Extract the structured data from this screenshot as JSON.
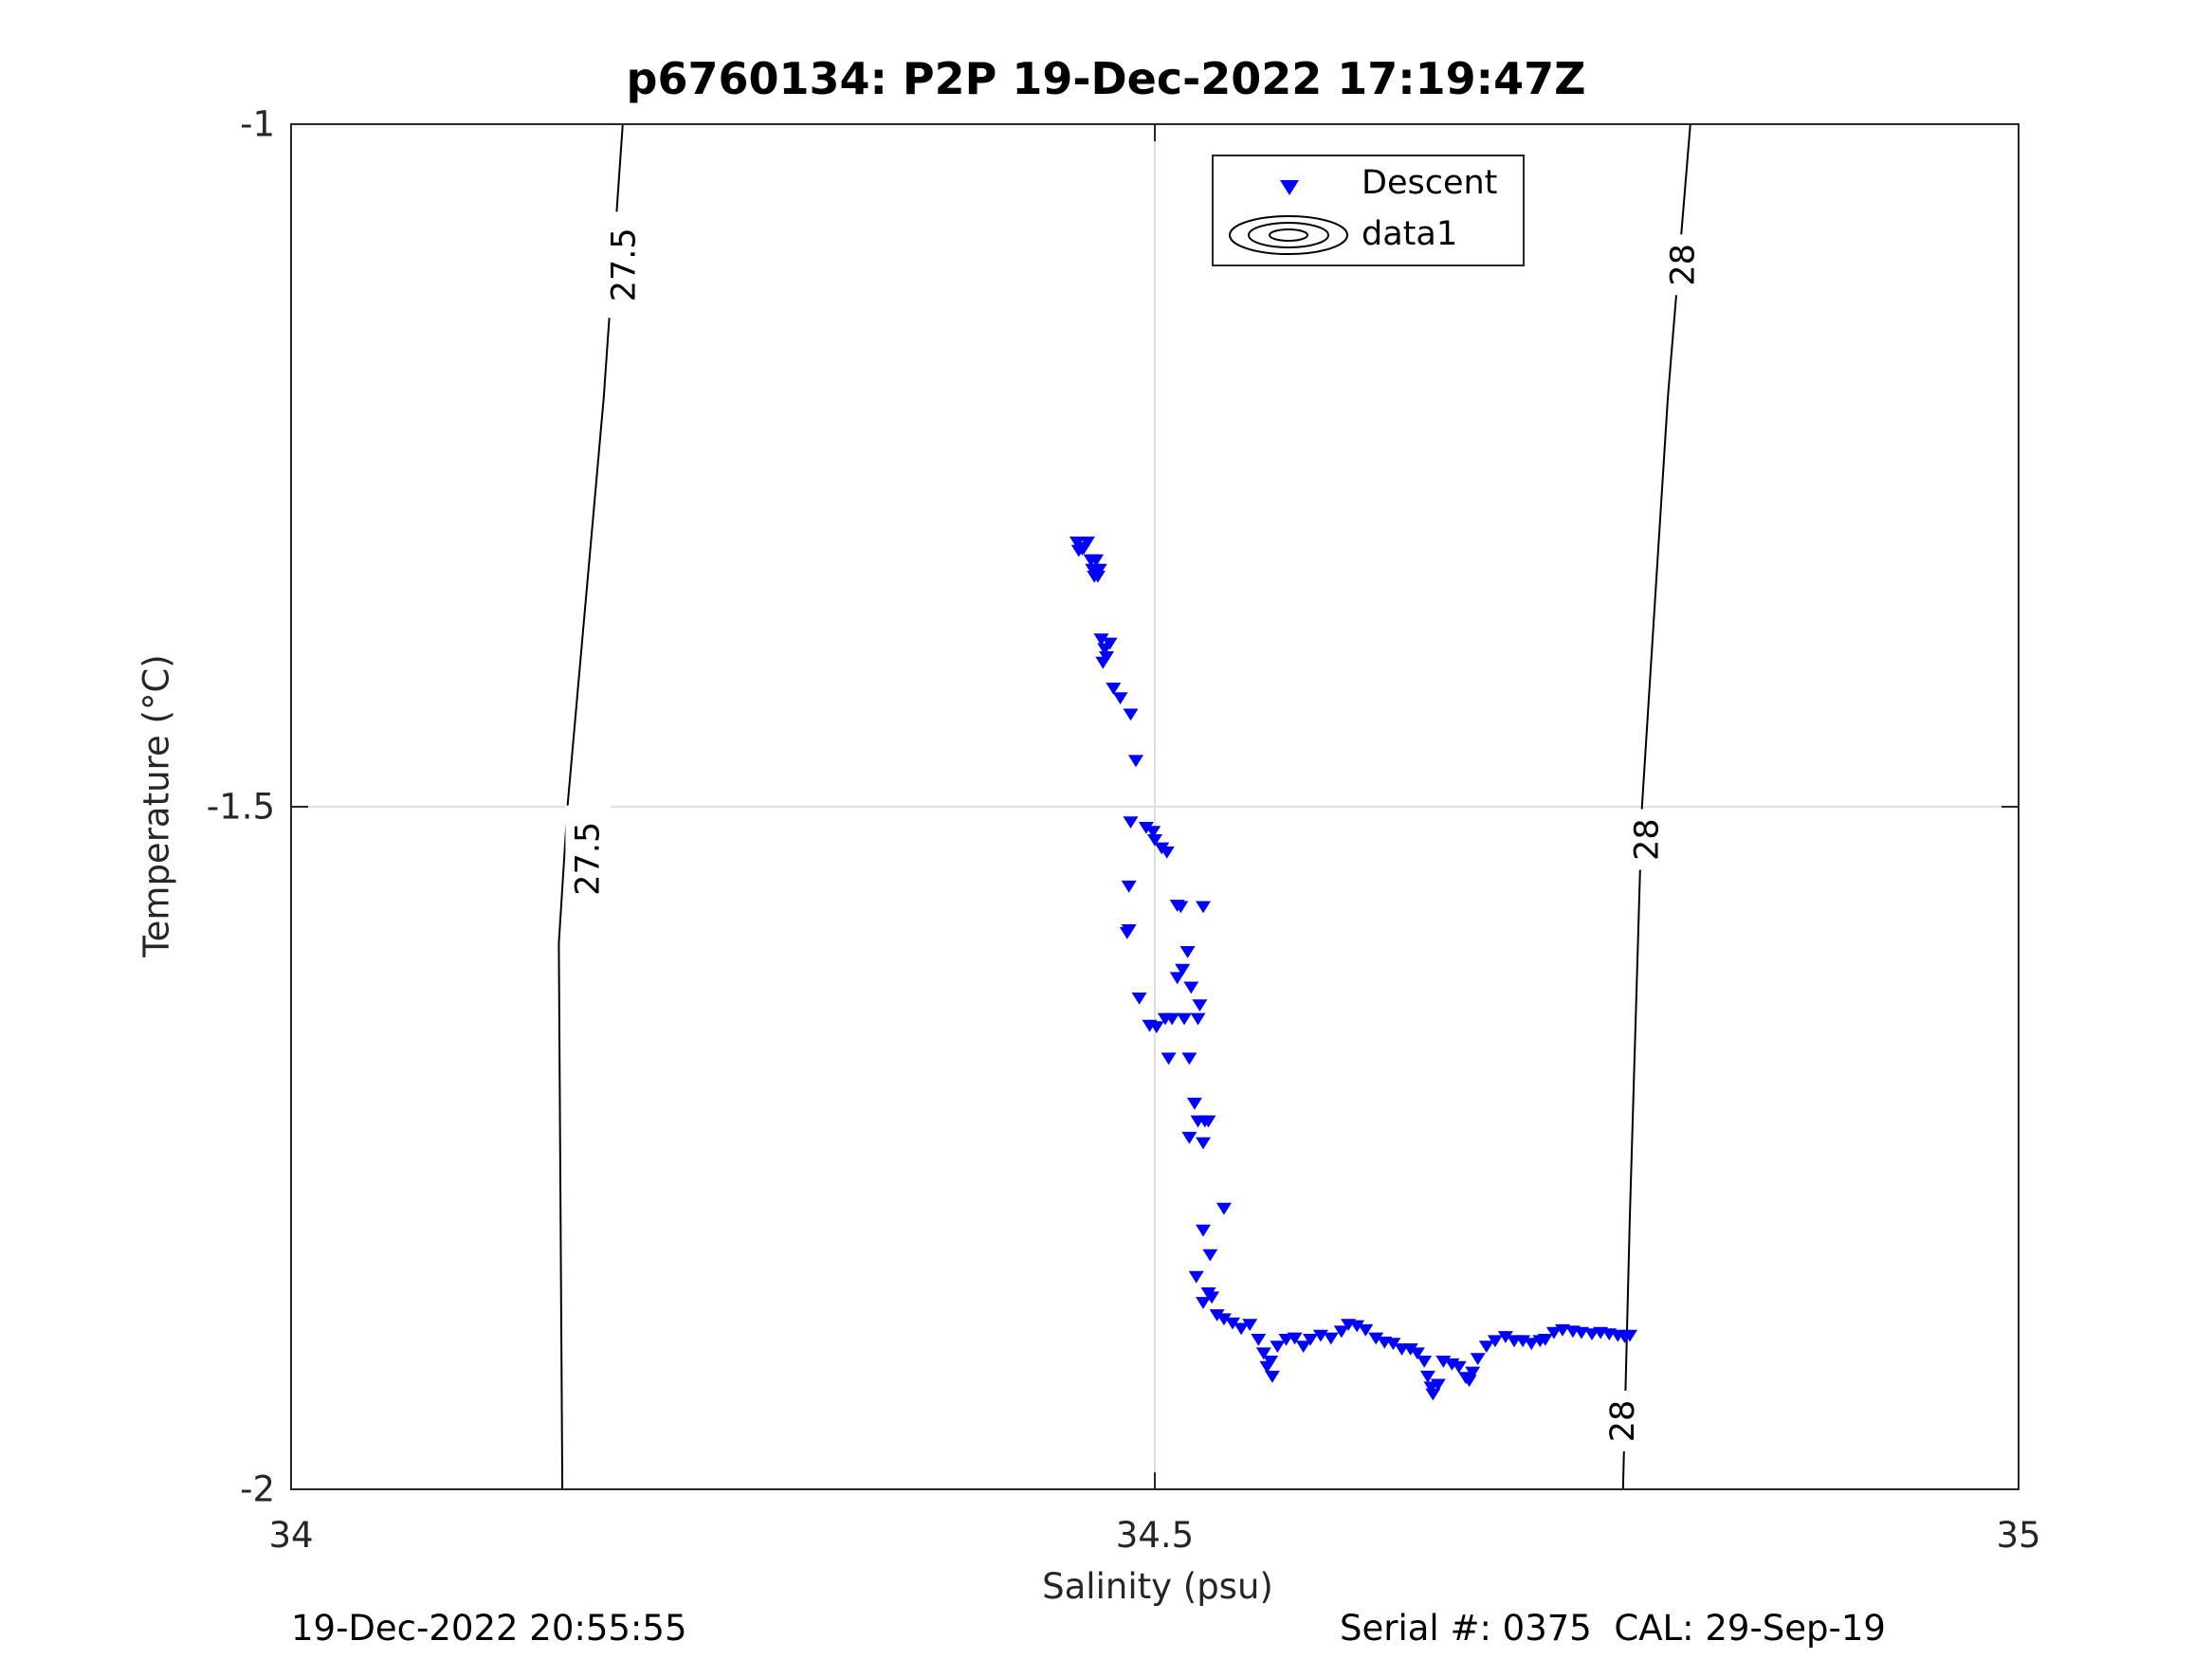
{
  "chart_data": {
    "type": "scatter",
    "title": "p6760134: P2P 19-Dec-2022 17:19:47Z",
    "xlabel": "Salinity (psu)",
    "ylabel": "Temperature (°C)",
    "xlim": [
      34,
      35
    ],
    "ylim": [
      -2,
      -1
    ],
    "xticks": [
      "34",
      "34.5",
      "35"
    ],
    "yticks": [
      "-1",
      "-1.5",
      "-2"
    ],
    "grid": true,
    "legend_position": "top",
    "legend": [
      "Descent",
      "data1"
    ],
    "marker_color": "#0000ff",
    "contour_color": "#000000",
    "density_contours": [
      {
        "label": "27.5",
        "points": [
          [
            34.192,
            -1.0
          ],
          [
            34.181,
            -1.2
          ],
          [
            34.16,
            -1.5
          ],
          [
            34.155,
            -1.6
          ],
          [
            34.157,
            -2.0
          ]
        ]
      },
      {
        "label": "28",
        "points": [
          [
            34.81,
            -1.0
          ],
          [
            34.797,
            -1.2
          ],
          [
            34.782,
            -1.5
          ],
          [
            34.775,
            -1.8
          ],
          [
            34.771,
            -2.0
          ]
        ]
      }
    ],
    "contour_labels": [
      {
        "text": "27.5",
        "x": 34.193,
        "y": -1.103
      },
      {
        "text": "27.5",
        "x": 34.172,
        "y": -1.538
      },
      {
        "text": "28",
        "x": 34.806,
        "y": -1.103
      },
      {
        "text": "28",
        "x": 34.785,
        "y": -1.524
      },
      {
        "text": "28",
        "x": 34.771,
        "y": -1.95
      }
    ],
    "series": [
      {
        "name": "Descent",
        "marker": "triangle-down",
        "points": [
          [
            34.455,
            -1.306
          ],
          [
            34.458,
            -1.311
          ],
          [
            34.461,
            -1.306
          ],
          [
            34.456,
            -1.312
          ],
          [
            34.459,
            -1.31
          ],
          [
            34.463,
            -1.319
          ],
          [
            34.466,
            -1.319
          ],
          [
            34.464,
            -1.326
          ],
          [
            34.468,
            -1.326
          ],
          [
            34.467,
            -1.331
          ],
          [
            34.465,
            -1.331
          ],
          [
            34.469,
            -1.377
          ],
          [
            34.471,
            -1.384
          ],
          [
            34.472,
            -1.39
          ],
          [
            34.474,
            -1.38
          ],
          [
            34.47,
            -1.394
          ],
          [
            34.476,
            -1.413
          ],
          [
            34.48,
            -1.42
          ],
          [
            34.486,
            -1.432
          ],
          [
            34.489,
            -1.466
          ],
          [
            34.486,
            -1.511
          ],
          [
            34.495,
            -1.515
          ],
          [
            34.499,
            -1.518
          ],
          [
            34.504,
            -1.53
          ],
          [
            34.507,
            -1.533
          ],
          [
            34.5,
            -1.524
          ],
          [
            34.485,
            -1.558
          ],
          [
            34.485,
            -1.59
          ],
          [
            34.484,
            -1.592
          ],
          [
            34.513,
            -1.572
          ],
          [
            34.515,
            -1.573
          ],
          [
            34.528,
            -1.573
          ],
          [
            34.519,
            -1.606
          ],
          [
            34.516,
            -1.619
          ],
          [
            34.513,
            -1.625
          ],
          [
            34.491,
            -1.64
          ],
          [
            34.497,
            -1.66
          ],
          [
            34.501,
            -1.661
          ],
          [
            34.506,
            -1.655
          ],
          [
            34.51,
            -1.655
          ],
          [
            34.517,
            -1.655
          ],
          [
            34.521,
            -1.632
          ],
          [
            34.526,
            -1.645
          ],
          [
            34.525,
            -1.655
          ],
          [
            34.508,
            -1.684
          ],
          [
            34.52,
            -1.684
          ],
          [
            34.523,
            -1.717
          ],
          [
            34.529,
            -1.73
          ],
          [
            34.52,
            -1.742
          ],
          [
            34.525,
            -1.73
          ],
          [
            34.531,
            -1.73
          ],
          [
            34.528,
            -1.746
          ],
          [
            34.54,
            -1.794
          ],
          [
            34.528,
            -1.81
          ],
          [
            34.532,
            -1.828
          ],
          [
            34.524,
            -1.844
          ],
          [
            34.531,
            -1.856
          ],
          [
            34.528,
            -1.863
          ],
          [
            34.533,
            -1.859
          ],
          [
            34.536,
            -1.872
          ],
          [
            34.54,
            -1.875
          ],
          [
            34.545,
            -1.878
          ],
          [
            34.55,
            -1.882
          ],
          [
            34.555,
            -1.879
          ],
          [
            34.56,
            -1.89
          ],
          [
            34.563,
            -1.9
          ],
          [
            34.565,
            -1.91
          ],
          [
            34.568,
            -1.917
          ],
          [
            34.567,
            -1.906
          ],
          [
            34.571,
            -1.895
          ],
          [
            34.576,
            -1.89
          ],
          [
            34.581,
            -1.889
          ],
          [
            34.586,
            -1.895
          ],
          [
            34.59,
            -1.89
          ],
          [
            34.596,
            -1.887
          ],
          [
            34.602,
            -1.889
          ],
          [
            34.608,
            -1.884
          ],
          [
            34.612,
            -1.879
          ],
          [
            34.617,
            -1.88
          ],
          [
            34.622,
            -1.883
          ],
          [
            34.628,
            -1.889
          ],
          [
            34.633,
            -1.892
          ],
          [
            34.638,
            -1.893
          ],
          [
            34.643,
            -1.897
          ],
          [
            34.648,
            -1.897
          ],
          [
            34.652,
            -1.9
          ],
          [
            34.656,
            -1.906
          ],
          [
            34.658,
            -1.917
          ],
          [
            34.66,
            -1.925
          ],
          [
            34.661,
            -1.93
          ],
          [
            34.664,
            -1.923
          ],
          [
            34.667,
            -1.906
          ],
          [
            34.672,
            -1.908
          ],
          [
            34.676,
            -1.91
          ],
          [
            34.68,
            -1.918
          ],
          [
            34.682,
            -1.92
          ],
          [
            34.684,
            -1.914
          ],
          [
            34.687,
            -1.904
          ],
          [
            34.692,
            -1.895
          ],
          [
            34.697,
            -1.891
          ],
          [
            34.703,
            -1.888
          ],
          [
            34.708,
            -1.891
          ],
          [
            34.713,
            -1.891
          ],
          [
            34.718,
            -1.893
          ],
          [
            34.723,
            -1.891
          ],
          [
            34.726,
            -1.89
          ],
          [
            34.731,
            -1.885
          ],
          [
            34.736,
            -1.883
          ],
          [
            34.742,
            -1.884
          ],
          [
            34.747,
            -1.885
          ],
          [
            34.753,
            -1.886
          ],
          [
            34.758,
            -1.885
          ],
          [
            34.763,
            -1.886
          ],
          [
            34.768,
            -1.887
          ],
          [
            34.772,
            -1.888
          ],
          [
            34.775,
            -1.887
          ]
        ]
      }
    ]
  },
  "footer": {
    "left": "19-Dec-2022 20:55:55",
    "right": "Serial #: 0375  CAL: 29-Sep-19"
  }
}
